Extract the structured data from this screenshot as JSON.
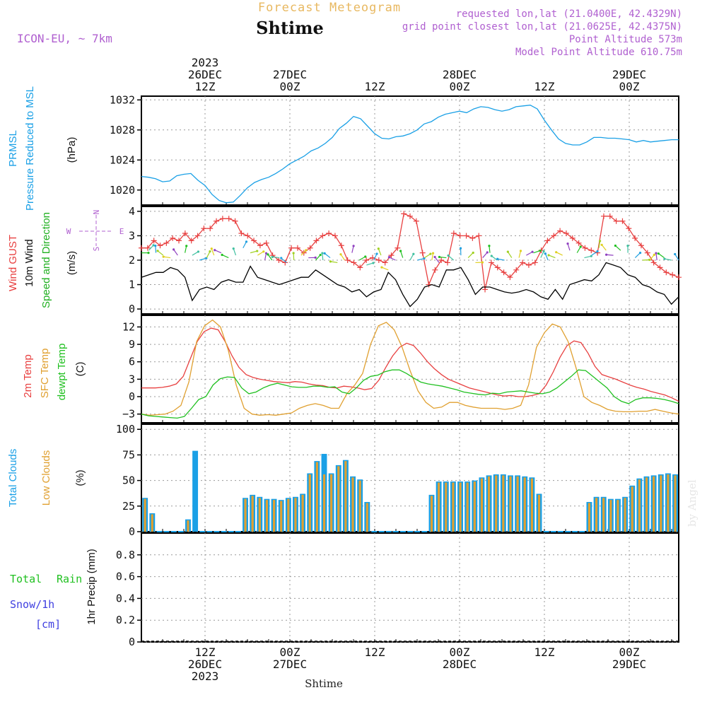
{
  "header": {
    "supertitle": "Forecast Meteogram",
    "location": "Shtime",
    "model": "ICON-EU, ~ 7km",
    "requested": "requested lon,lat (21.0400E, 42.4329N)",
    "grid_point": "grid point closest lon,lat (21.0625E, 42.4375N)",
    "point_altitude": "Point Altitude 573m",
    "model_altitude": "Model Point Altitude 610.75m",
    "watermark": "by Angel"
  },
  "time_axis": {
    "start": "2023-12-26T03Z",
    "step_hours": 1,
    "end": "2023-12-29T07Z",
    "top_labels": [
      {
        "t": 9,
        "lines": [
          "2023",
          "26DEC",
          "12Z"
        ]
      },
      {
        "t": 21,
        "lines": [
          "27DEC",
          "00Z"
        ]
      },
      {
        "t": 33,
        "lines": [
          "12Z"
        ]
      },
      {
        "t": 45,
        "lines": [
          "28DEC",
          "00Z"
        ]
      },
      {
        "t": 57,
        "lines": [
          "12Z"
        ]
      },
      {
        "t": 69,
        "lines": [
          "29DEC",
          "00Z"
        ]
      }
    ],
    "bottom_labels": [
      {
        "t": 9,
        "lines": [
          "12Z",
          "26DEC",
          "2023"
        ]
      },
      {
        "t": 21,
        "lines": [
          "00Z",
          "27DEC"
        ]
      },
      {
        "t": 33,
        "lines": [
          "12Z"
        ]
      },
      {
        "t": 45,
        "lines": [
          "00Z",
          "28DEC"
        ]
      },
      {
        "t": 57,
        "lines": [
          "12Z"
        ]
      },
      {
        "t": 69,
        "lines": [
          "00Z",
          "29DEC"
        ]
      }
    ],
    "bottom_title": "Shtime"
  },
  "chart_data": [
    {
      "type": "line",
      "panel": "pressure",
      "ylabels": [
        "PRMSL",
        "Pressure Reduced to MSL",
        "(hPa)"
      ],
      "ylim": [
        1018,
        1032.5
      ],
      "yticks": [
        1020,
        1024,
        1028,
        1032
      ],
      "grid": true,
      "series": [
        {
          "name": "PRMSL",
          "color": "#1aa0e6",
          "values": [
            1021.8,
            1021.7,
            1021.5,
            1021.1,
            1021.2,
            1021.9,
            1022.1,
            1022.2,
            1021.3,
            1020.6,
            1019.4,
            1018.6,
            1018.3,
            1018.4,
            1019.3,
            1020.3,
            1021.0,
            1021.4,
            1021.7,
            1022.2,
            1022.8,
            1023.5,
            1024.0,
            1024.5,
            1025.2,
            1025.6,
            1026.2,
            1027.0,
            1028.2,
            1028.9,
            1029.8,
            1029.5,
            1028.5,
            1027.5,
            1026.9,
            1026.8,
            1027.1,
            1027.2,
            1027.5,
            1028.0,
            1028.8,
            1029.1,
            1029.7,
            1030.1,
            1030.3,
            1030.5,
            1030.3,
            1030.8,
            1031.1,
            1031.0,
            1030.7,
            1030.5,
            1030.7,
            1031.1,
            1031.2,
            1031.3,
            1030.8,
            1029.3,
            1028.0,
            1026.8,
            1026.2,
            1026.0,
            1026.0,
            1026.4,
            1027.0,
            1027.0,
            1026.9,
            1026.9,
            1026.8,
            1026.7,
            1026.4,
            1026.6,
            1026.4,
            1026.5,
            1026.6,
            1026.7,
            1026.7
          ]
        }
      ]
    },
    {
      "type": "line",
      "panel": "wind",
      "ylabels": [
        "Wind GUST",
        "10m Wind",
        "Speed and Direction",
        "(m/s)"
      ],
      "compass": {
        "n": "N",
        "w": "W",
        "e": "E",
        "s": "S"
      },
      "ylim": [
        -0.2,
        4.2
      ],
      "yticks": [
        0,
        1,
        2,
        3,
        4
      ],
      "grid": true,
      "series": [
        {
          "name": "Wind GUST",
          "color": "#e84040",
          "marker": "+",
          "values": [
            2.5,
            2.5,
            2.8,
            2.6,
            2.7,
            2.9,
            2.8,
            3.1,
            2.8,
            3.0,
            3.3,
            3.3,
            3.6,
            3.7,
            3.7,
            3.6,
            3.1,
            3.0,
            2.8,
            2.6,
            2.7,
            2.2,
            2.0,
            1.9,
            2.5,
            2.5,
            2.3,
            2.5,
            2.8,
            3.0,
            3.1,
            3.0,
            2.6,
            2.0,
            1.9,
            1.7,
            2.0,
            2.1,
            2.0,
            1.9,
            2.2,
            2.5,
            3.9,
            3.8,
            3.6,
            2.3,
            1.0,
            1.6,
            2.0,
            1.9,
            3.1,
            3.0,
            3.0,
            2.9,
            3.0,
            0.8,
            1.9,
            1.7,
            1.5,
            1.3,
            1.6,
            1.9,
            1.8,
            1.9,
            2.4,
            2.8,
            3.0,
            3.2,
            3.1,
            2.9,
            2.7,
            2.5,
            2.4,
            2.3,
            3.8,
            3.8,
            3.6,
            3.6,
            3.3,
            2.9,
            2.6,
            2.3,
            1.9,
            1.7,
            1.5,
            1.4,
            1.3
          ]
        },
        {
          "name": "10m Wind",
          "color": "#000000",
          "values": [
            1.3,
            1.4,
            1.5,
            1.5,
            1.7,
            1.6,
            1.3,
            0.35,
            0.8,
            0.9,
            0.8,
            1.1,
            1.2,
            1.1,
            1.1,
            1.75,
            1.3,
            1.2,
            1.1,
            1.0,
            1.1,
            1.2,
            1.3,
            1.3,
            1.6,
            1.4,
            1.2,
            1.0,
            0.9,
            0.7,
            0.8,
            0.5,
            0.7,
            0.8,
            1.5,
            1.2,
            0.6,
            0.1,
            0.4,
            0.9,
            1.0,
            0.9,
            1.6,
            1.6,
            1.7,
            1.2,
            0.6,
            0.9,
            0.9,
            0.8,
            0.7,
            0.65,
            0.7,
            0.8,
            0.7,
            0.5,
            0.4,
            0.8,
            0.4,
            1.0,
            1.1,
            1.2,
            1.15,
            1.4,
            1.9,
            1.8,
            1.7,
            1.4,
            1.3,
            1.0,
            0.9,
            0.7,
            0.6,
            0.2,
            0.5
          ]
        },
        {
          "name": "Speed and Direction",
          "color": "#20b020",
          "values": [
            2.3,
            2.4,
            2.3,
            2.2,
            2.1,
            2.2,
            2.3,
            2.2,
            2.0,
            2.1,
            2.2,
            2.3,
            2.1,
            2.2,
            2.5,
            2.3,
            2.2,
            2.0,
            2.0,
            2.1,
            1.9,
            2.0,
            2.2,
            2.1,
            2.0,
            2.0,
            2.1,
            1.9,
            2.0,
            2.3,
            2.0,
            1.8,
            2.0,
            2.2,
            1.6,
            2.0,
            2.1,
            2.0,
            2.0,
            2.1,
            2.0,
            1.9,
            2.1,
            2.0,
            2.2,
            2.1,
            1.9,
            2.1,
            2.3,
            2.0,
            2.0,
            2.1,
            2.1,
            2.2,
            2.3,
            2.1,
            2.0,
            2.1,
            2.2,
            2.4,
            2.3,
            2.1,
            2.2,
            2.5,
            2.4,
            2.2,
            2.4,
            2.3,
            2.1,
            2.0,
            2.0,
            2.0,
            2.1,
            2.0,
            2.0
          ]
        }
      ]
    },
    {
      "type": "line",
      "panel": "temperature",
      "ylabels": [
        "2m Temp",
        "SFC Temp",
        "dewpt Temp",
        "(C)"
      ],
      "ylim": [
        -4.5,
        14
      ],
      "yticks": [
        -3,
        0,
        3,
        6,
        9,
        12
      ],
      "grid": true,
      "series": [
        {
          "name": "2m Temp",
          "color": "#e84040",
          "values": [
            1.5,
            1.5,
            1.5,
            1.6,
            1.8,
            2.2,
            3.5,
            6.5,
            9.5,
            11.2,
            11.8,
            11.5,
            9.5,
            7.0,
            5.0,
            3.8,
            3.3,
            3.0,
            2.8,
            2.6,
            2.5,
            2.4,
            2.6,
            2.5,
            2.2,
            2.0,
            1.9,
            1.6,
            1.5,
            1.8,
            1.7,
            1.5,
            1.2,
            1.4,
            2.8,
            5.0,
            7.0,
            8.5,
            9.2,
            8.8,
            7.5,
            6.0,
            4.8,
            3.8,
            3.0,
            2.5,
            2.0,
            1.5,
            1.2,
            0.9,
            0.6,
            0.3,
            0.1,
            0.2,
            0.0,
            0.0,
            0.2,
            0.5,
            2.0,
            4.2,
            6.8,
            8.8,
            9.6,
            9.3,
            7.5,
            5.2,
            3.8,
            3.4,
            3.0,
            2.5,
            2.0,
            1.6,
            1.3,
            0.9,
            0.6,
            0.3,
            -0.2,
            -0.8
          ]
        },
        {
          "name": "SFC Temp",
          "color": "#e0a030",
          "values": [
            -3.0,
            -3.2,
            -3.1,
            -3.0,
            -2.5,
            -1.5,
            2.5,
            9.5,
            12.2,
            13.2,
            12.0,
            8.0,
            2.0,
            -2.0,
            -3.0,
            -3.2,
            -3.1,
            -3.2,
            -3.0,
            -2.8,
            -2.0,
            -1.5,
            -1.2,
            -1.5,
            -2.0,
            -2.0,
            0.5,
            2.0,
            4.0,
            9.0,
            12.2,
            12.8,
            11.5,
            8.5,
            4.5,
            1.0,
            -1.0,
            -2.0,
            -1.8,
            -1.0,
            -1.0,
            -1.5,
            -1.8,
            -2.0,
            -2.0,
            -2.0,
            -2.2,
            -2.0,
            -1.5,
            2.0,
            8.5,
            11.0,
            12.5,
            12.0,
            9.5,
            5.0,
            0.0,
            -1.0,
            -1.5,
            -2.2,
            -2.5,
            -2.6,
            -2.6,
            -2.5,
            -2.5,
            -2.2,
            -2.5,
            -2.8,
            -3.0
          ]
        },
        {
          "name": "dewpt Temp",
          "color": "#20c020",
          "values": [
            -3.0,
            -3.3,
            -3.4,
            -3.5,
            -3.6,
            -3.7,
            -3.4,
            -2.0,
            -0.5,
            0.0,
            2.0,
            3.1,
            3.4,
            3.3,
            1.5,
            0.5,
            0.8,
            1.5,
            2.0,
            2.3,
            2.0,
            1.7,
            1.6,
            1.6,
            1.8,
            1.8,
            1.6,
            1.7,
            0.8,
            0.5,
            1.5,
            2.8,
            3.5,
            3.7,
            4.3,
            4.6,
            4.6,
            4.0,
            3.2,
            2.5,
            2.2,
            2.0,
            1.8,
            1.5,
            1.2,
            0.8,
            0.6,
            0.4,
            0.3,
            0.6,
            0.5,
            0.8,
            0.9,
            1.0,
            0.8,
            0.6,
            0.5,
            0.8,
            1.5,
            2.5,
            3.5,
            4.6,
            4.5,
            3.5,
            2.5,
            1.5,
            0.0,
            -0.8,
            -1.2,
            -0.5,
            -0.2,
            -0.2,
            -0.3,
            -0.5,
            -0.8,
            -1.2
          ]
        }
      ]
    },
    {
      "type": "bar",
      "panel": "clouds",
      "ylabels": [
        "Total Clouds",
        "Low Clouds",
        "(%)"
      ],
      "ylim": [
        0,
        105
      ],
      "yticks": [
        0,
        25,
        50,
        75,
        100
      ],
      "grid": true,
      "series": [
        {
          "name": "Total Clouds",
          "color": "#1aa0e6",
          "values": [
            33,
            18,
            0,
            0,
            0,
            0,
            12,
            79,
            0,
            0,
            0,
            0,
            0,
            0,
            33,
            36,
            34,
            32,
            32,
            31,
            33,
            34,
            37,
            57,
            69,
            76,
            57,
            65,
            70,
            54,
            51,
            29,
            0,
            0,
            0,
            0,
            0,
            0,
            0,
            0,
            36,
            49,
            49,
            49,
            49,
            49,
            50,
            53,
            55,
            56,
            56,
            55,
            55,
            54,
            53,
            37,
            0,
            0,
            0,
            0,
            0,
            0,
            29,
            34,
            34,
            32,
            32,
            34,
            45,
            52,
            54,
            55,
            56,
            57,
            56
          ]
        },
        {
          "name": "Low Clouds",
          "color": "#e0a030",
          "values": [
            32,
            17,
            0,
            0,
            0,
            0,
            11,
            0,
            0,
            0,
            0,
            0,
            0,
            0,
            32,
            35,
            33,
            31,
            31,
            30,
            32,
            33,
            36,
            56,
            68,
            56,
            56,
            64,
            69,
            53,
            50,
            28,
            0,
            0,
            0,
            0,
            0,
            0,
            0,
            0,
            35,
            48,
            48,
            48,
            48,
            48,
            49,
            52,
            54,
            55,
            55,
            54,
            54,
            53,
            52,
            36,
            0,
            0,
            0,
            0,
            0,
            0,
            28,
            33,
            33,
            31,
            31,
            33,
            44,
            51,
            53,
            54,
            55,
            56,
            55
          ]
        }
      ]
    },
    {
      "type": "bar",
      "panel": "precip",
      "ylabels": [
        "1hr Precip (mm)"
      ],
      "side_labels": {
        "total": "Total",
        "rain": "Rain",
        "snow": "Snow/1h",
        "unit": "[cm]"
      },
      "ylim": [
        0,
        1.0
      ],
      "yticks": [
        0,
        0.2,
        0.4,
        0.6,
        0.8
      ],
      "grid": true,
      "series": [
        {
          "name": "Total",
          "color": "#20c020",
          "values": []
        },
        {
          "name": "Snow/1h",
          "color": "#4040e0",
          "values": []
        }
      ]
    }
  ],
  "colors": {
    "title_gold": "#e8b860",
    "purple": "#b060d0",
    "cyan": "#1aa0e6",
    "red": "#e84040",
    "green": "#20c020",
    "orange": "#e0a030",
    "blue": "#4040e0"
  }
}
